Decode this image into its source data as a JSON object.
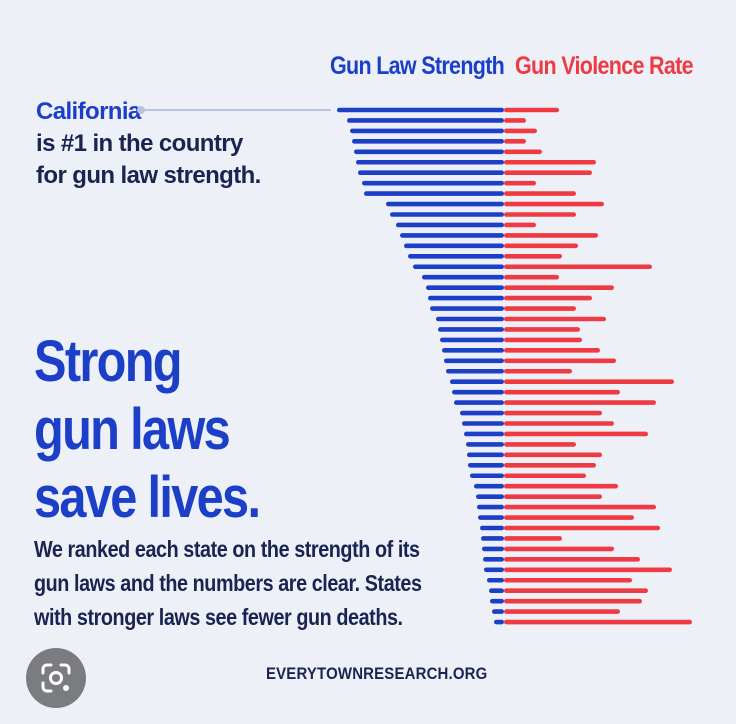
{
  "legend": {
    "strength_label": "Gun Law Strength",
    "violence_label": "Gun Violence Rate"
  },
  "callout": {
    "state": "California",
    "line1": "is #1 in the country",
    "line2": "for gun law strength."
  },
  "headline": {
    "line1": "Strong",
    "line2": "gun laws",
    "line3": "save lives."
  },
  "body": {
    "line1": "We ranked each state on the strength of its",
    "line2": "gun laws and the numbers are clear. States",
    "line3": "with stronger laws see fewer gun deaths."
  },
  "footer": {
    "source": "EVERYTOWNRESEARCH.ORG"
  },
  "lens": {
    "icon": "lens-icon"
  },
  "colors": {
    "strength": "#1b3fc6",
    "violence": "#ee3a42",
    "background": "#eef0f8"
  },
  "chart_data": {
    "type": "bar",
    "orientation": "diverging-horizontal",
    "categories_count": 50,
    "series": [
      {
        "name": "Gun Law Strength",
        "values": [
          167,
          157,
          154,
          152,
          150,
          148,
          146,
          142,
          140,
          118,
          114,
          108,
          104,
          100,
          96,
          91,
          82,
          78,
          76,
          74,
          68,
          66,
          64,
          62,
          60,
          58,
          54,
          52,
          50,
          44,
          42,
          40,
          38,
          37,
          36,
          34,
          30,
          28,
          27,
          26,
          24,
          23,
          22,
          21,
          20,
          17,
          15,
          14,
          12,
          10
        ]
      },
      {
        "name": "Gun Violence Rate",
        "values": [
          55,
          22,
          33,
          22,
          38,
          92,
          88,
          32,
          72,
          100,
          72,
          32,
          94,
          74,
          58,
          148,
          55,
          110,
          88,
          72,
          102,
          76,
          78,
          96,
          112,
          68,
          170,
          116,
          152,
          98,
          110,
          144,
          72,
          98,
          92,
          82,
          114,
          98,
          152,
          130,
          156,
          58,
          110,
          136,
          168,
          128,
          144,
          138,
          116,
          188
        ]
      }
    ],
    "xlabel": "",
    "ylabel": ""
  }
}
